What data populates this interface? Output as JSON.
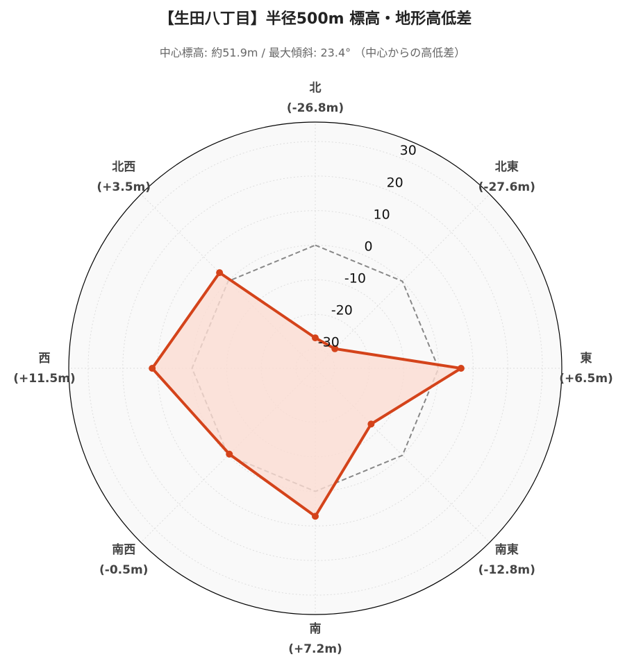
{
  "chart_data": {
    "type": "radar",
    "title": "【生田八丁目】半径500m 標高・地形高低差",
    "subtitle": "中心標高: 約51.9m / 最大傾斜: 23.4° （中心からの高低差）",
    "categories": [
      "北",
      "北東",
      "東",
      "南東",
      "南",
      "南西",
      "西",
      "北西"
    ],
    "values": [
      -26.8,
      -27.6,
      6.5,
      -12.8,
      7.2,
      -0.5,
      11.5,
      3.5
    ],
    "value_labels": [
      "(-26.8m)",
      "(-27.6m)",
      "(+6.5m)",
      "(-12.8m)",
      "(+7.2m)",
      "(-0.5m)",
      "(+11.5m)",
      "(+3.5m)"
    ],
    "color": "#d4431a",
    "fill_color": "#fbdcd2",
    "reference_line": {
      "value": 0,
      "color": "#888888"
    },
    "ylim": [
      -35.6,
      35.6
    ],
    "yticks": [
      -30,
      -20,
      -10,
      0,
      10,
      20,
      30
    ],
    "grid": true
  }
}
